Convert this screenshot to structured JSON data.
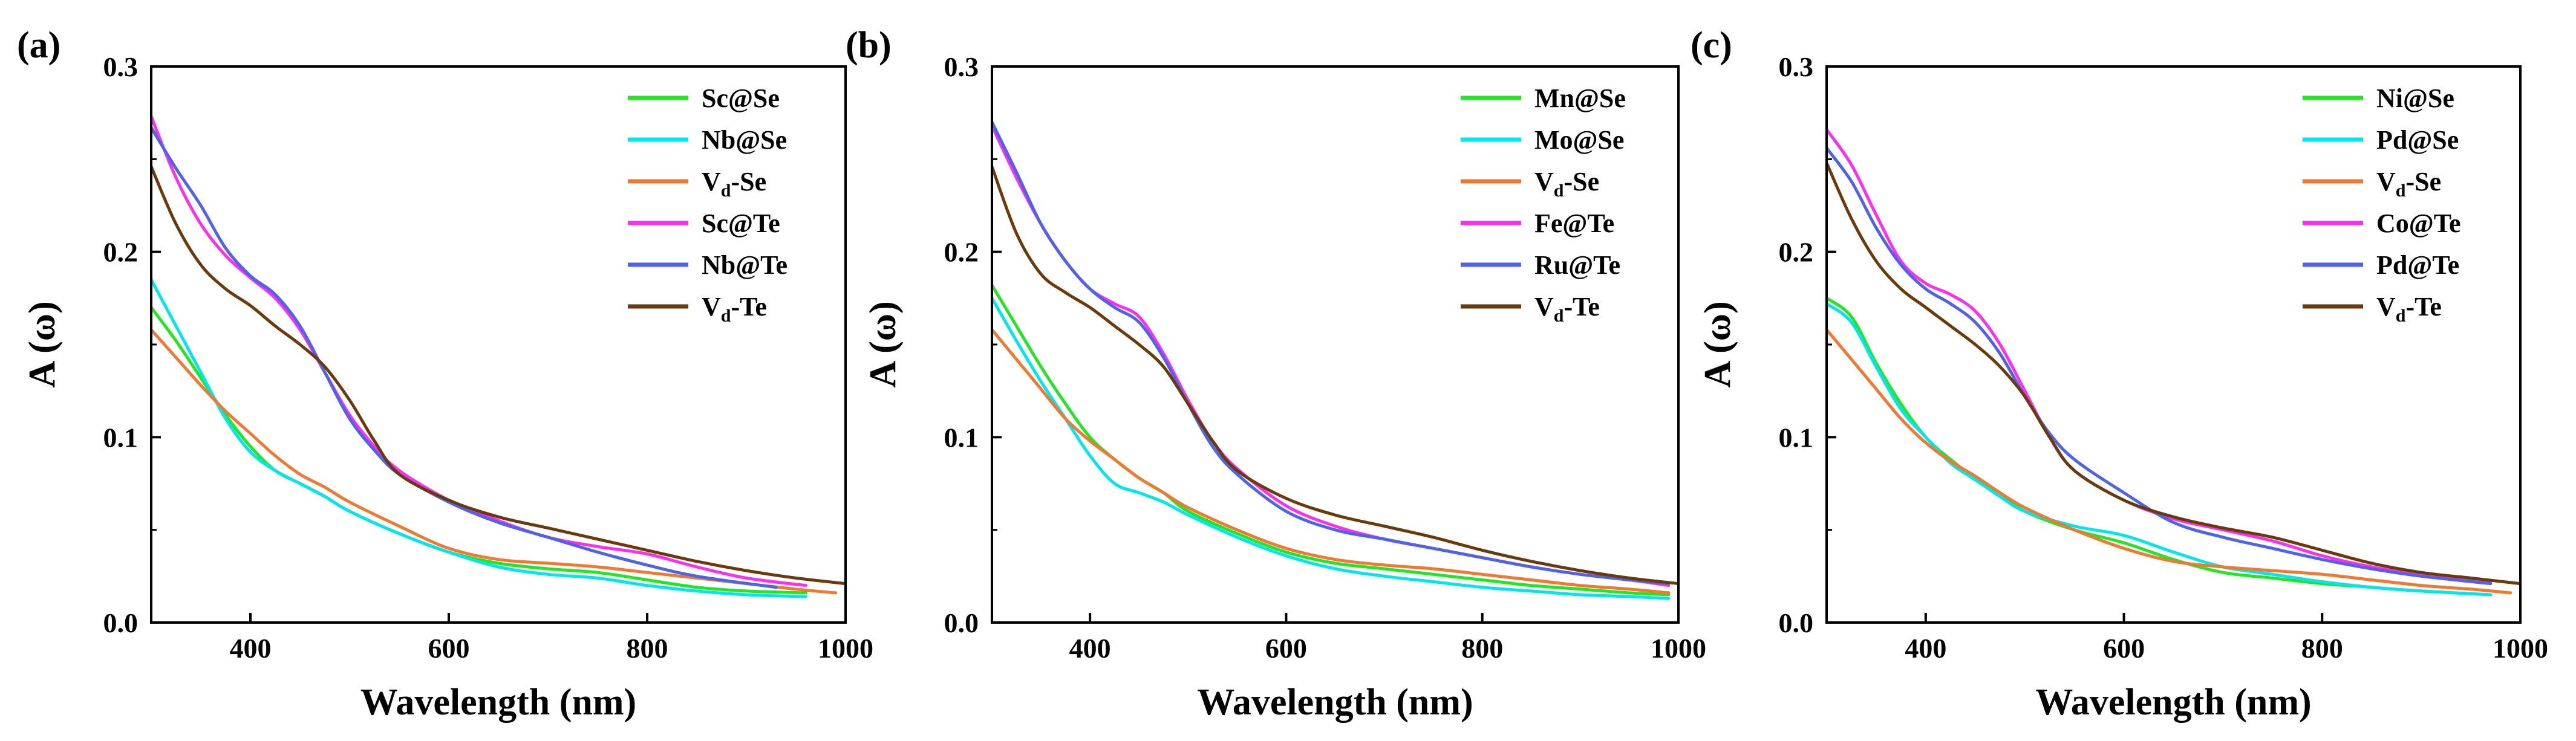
{
  "figure_caption": "",
  "chart_data": [
    {
      "panel": "(a)",
      "type": "line",
      "title": "",
      "xlabel": "Wavelength (nm)",
      "ylabel": "A (ω)",
      "xlim": [
        300,
        1000
      ],
      "ylim": [
        0,
        0.3
      ],
      "xticks": [
        400,
        600,
        800,
        1000
      ],
      "yticks": [
        0.0,
        0.1,
        0.2,
        0.3
      ],
      "xtick_labels": [
        "400",
        "600",
        "800",
        "1000"
      ],
      "ytick_labels": [
        "0.0",
        "0.1",
        "0.2",
        "0.3"
      ],
      "legend_position": "top-right",
      "series": [
        {
          "name": "Sc@Se",
          "label_main": "Sc@Se",
          "label_sub": "",
          "label_tail": "",
          "color": "#22e622",
          "x": [
            300,
            325,
            350,
            375,
            400,
            425,
            450,
            475,
            500,
            550,
            600,
            650,
            700,
            750,
            800,
            850,
            900,
            960
          ],
          "y": [
            0.17,
            0.152,
            0.132,
            0.112,
            0.095,
            0.082,
            0.075,
            0.068,
            0.06,
            0.048,
            0.038,
            0.032,
            0.029,
            0.027,
            0.023,
            0.019,
            0.017,
            0.016
          ]
        },
        {
          "name": "Nb@Se",
          "label_main": "Nb@Se",
          "label_sub": "",
          "label_tail": "",
          "color": "#00e5ee",
          "x": [
            300,
            325,
            350,
            375,
            400,
            425,
            450,
            475,
            500,
            550,
            600,
            650,
            700,
            750,
            800,
            850,
            900,
            960
          ],
          "y": [
            0.185,
            0.16,
            0.135,
            0.11,
            0.092,
            0.082,
            0.075,
            0.068,
            0.06,
            0.048,
            0.038,
            0.03,
            0.026,
            0.024,
            0.02,
            0.017,
            0.015,
            0.014
          ]
        },
        {
          "name": "Vd-Se",
          "label_main": "V",
          "label_sub": "d",
          "label_tail": "-Se",
          "color": "#f07830",
          "x": [
            300,
            325,
            350,
            375,
            400,
            425,
            450,
            475,
            500,
            550,
            600,
            650,
            700,
            750,
            800,
            850,
            900,
            950,
            990
          ],
          "y": [
            0.158,
            0.143,
            0.128,
            0.114,
            0.102,
            0.09,
            0.08,
            0.073,
            0.065,
            0.052,
            0.04,
            0.034,
            0.032,
            0.03,
            0.027,
            0.024,
            0.021,
            0.018,
            0.016
          ]
        },
        {
          "name": "Sc@Te",
          "label_main": "Sc@Te",
          "label_sub": "",
          "label_tail": "",
          "color": "#ff2df0",
          "x": [
            300,
            325,
            350,
            375,
            400,
            425,
            450,
            475,
            500,
            525,
            550,
            600,
            650,
            700,
            750,
            800,
            850,
            900,
            960
          ],
          "y": [
            0.273,
            0.24,
            0.215,
            0.198,
            0.186,
            0.175,
            0.158,
            0.135,
            0.112,
            0.095,
            0.082,
            0.066,
            0.055,
            0.046,
            0.041,
            0.037,
            0.03,
            0.024,
            0.02
          ]
        },
        {
          "name": "Nb@Te",
          "label_main": "Nb@Te",
          "label_sub": "",
          "label_tail": "",
          "color": "#4f63e8",
          "x": [
            300,
            325,
            350,
            375,
            400,
            425,
            450,
            475,
            500,
            525,
            550,
            600,
            650,
            700,
            750,
            800,
            850,
            930
          ],
          "y": [
            0.267,
            0.245,
            0.225,
            0.202,
            0.187,
            0.177,
            0.16,
            0.135,
            0.11,
            0.093,
            0.08,
            0.065,
            0.054,
            0.046,
            0.038,
            0.031,
            0.025,
            0.019
          ]
        },
        {
          "name": "Vd-Te",
          "label_main": "V",
          "label_sub": "d",
          "label_tail": "-Te",
          "color": "#6b3a0a",
          "x": [
            300,
            325,
            350,
            375,
            400,
            425,
            450,
            475,
            500,
            525,
            550,
            600,
            650,
            700,
            750,
            800,
            850,
            900,
            950,
            1000
          ],
          "y": [
            0.246,
            0.215,
            0.193,
            0.18,
            0.171,
            0.16,
            0.15,
            0.138,
            0.12,
            0.098,
            0.08,
            0.066,
            0.057,
            0.051,
            0.045,
            0.039,
            0.033,
            0.028,
            0.024,
            0.021
          ]
        }
      ]
    },
    {
      "panel": "(b)",
      "type": "line",
      "title": "",
      "xlabel": "Wavelength (nm)",
      "ylabel": "A (ω)",
      "xlim": [
        300,
        1000
      ],
      "ylim": [
        0,
        0.3
      ],
      "xticks": [
        400,
        600,
        800,
        1000
      ],
      "yticks": [
        0.0,
        0.1,
        0.2,
        0.3
      ],
      "xtick_labels": [
        "400",
        "600",
        "800",
        "1000"
      ],
      "ytick_labels": [
        "0.0",
        "0.1",
        "0.2",
        "0.3"
      ],
      "legend_position": "top-right",
      "series": [
        {
          "name": "Mn@Se",
          "label_main": "Mn@Se",
          "label_sub": "",
          "label_tail": "",
          "color": "#22e622",
          "x": [
            300,
            325,
            350,
            375,
            400,
            425,
            450,
            475,
            500,
            550,
            600,
            650,
            700,
            750,
            800,
            850,
            900,
            950,
            990
          ],
          "y": [
            0.182,
            0.16,
            0.138,
            0.118,
            0.1,
            0.088,
            0.078,
            0.07,
            0.06,
            0.048,
            0.038,
            0.032,
            0.029,
            0.026,
            0.023,
            0.02,
            0.018,
            0.016,
            0.015
          ]
        },
        {
          "name": "Mo@Se",
          "label_main": "Mo@Se",
          "label_sub": "",
          "label_tail": "",
          "color": "#00e5ee",
          "x": [
            300,
            325,
            350,
            375,
            400,
            425,
            450,
            475,
            500,
            550,
            600,
            650,
            700,
            750,
            800,
            850,
            900,
            950,
            990
          ],
          "y": [
            0.175,
            0.152,
            0.13,
            0.11,
            0.09,
            0.075,
            0.07,
            0.065,
            0.058,
            0.046,
            0.036,
            0.029,
            0.025,
            0.022,
            0.019,
            0.017,
            0.015,
            0.014,
            0.013
          ]
        },
        {
          "name": "Vd-Se",
          "label_main": "V",
          "label_sub": "d",
          "label_tail": "-Se",
          "color": "#f07830",
          "x": [
            300,
            325,
            350,
            375,
            400,
            425,
            450,
            475,
            500,
            550,
            600,
            650,
            700,
            750,
            800,
            850,
            900,
            950,
            990
          ],
          "y": [
            0.158,
            0.142,
            0.126,
            0.11,
            0.098,
            0.088,
            0.078,
            0.07,
            0.062,
            0.05,
            0.04,
            0.034,
            0.031,
            0.029,
            0.026,
            0.023,
            0.02,
            0.018,
            0.016
          ]
        },
        {
          "name": "Fe@Te",
          "label_main": "Fe@Te",
          "label_sub": "",
          "label_tail": "",
          "color": "#ff2df0",
          "x": [
            300,
            325,
            350,
            375,
            400,
            425,
            450,
            475,
            500,
            525,
            550,
            600,
            650,
            700,
            750,
            800,
            850,
            900,
            950,
            990
          ],
          "y": [
            0.268,
            0.24,
            0.215,
            0.195,
            0.18,
            0.172,
            0.165,
            0.145,
            0.12,
            0.098,
            0.083,
            0.063,
            0.052,
            0.045,
            0.04,
            0.035,
            0.03,
            0.026,
            0.023,
            0.02
          ]
        },
        {
          "name": "Ru@Te",
          "label_main": "Ru@Te",
          "label_sub": "",
          "label_tail": "",
          "color": "#4f63e8",
          "x": [
            300,
            325,
            350,
            375,
            400,
            425,
            450,
            475,
            500,
            525,
            550,
            600,
            650,
            700,
            750,
            800,
            850,
            900,
            950,
            990
          ],
          "y": [
            0.27,
            0.243,
            0.215,
            0.195,
            0.18,
            0.17,
            0.162,
            0.143,
            0.118,
            0.095,
            0.08,
            0.06,
            0.05,
            0.045,
            0.04,
            0.035,
            0.03,
            0.026,
            0.023,
            0.021
          ]
        },
        {
          "name": "Vd-Te",
          "label_main": "V",
          "label_sub": "d",
          "label_tail": "-Te",
          "color": "#6b3a0a",
          "x": [
            300,
            325,
            350,
            375,
            400,
            425,
            450,
            475,
            500,
            525,
            550,
            600,
            650,
            700,
            750,
            800,
            850,
            900,
            950,
            1000
          ],
          "y": [
            0.246,
            0.21,
            0.188,
            0.178,
            0.17,
            0.16,
            0.15,
            0.138,
            0.118,
            0.098,
            0.082,
            0.067,
            0.058,
            0.052,
            0.046,
            0.039,
            0.033,
            0.028,
            0.024,
            0.021
          ]
        }
      ]
    },
    {
      "panel": "(c)",
      "type": "line",
      "title": "",
      "xlabel": "Wavelength (nm)",
      "ylabel": "A (ω)",
      "xlim": [
        300,
        1000
      ],
      "ylim": [
        0,
        0.3
      ],
      "xticks": [
        400,
        600,
        800,
        1000
      ],
      "yticks": [
        0.0,
        0.1,
        0.2,
        0.3
      ],
      "xtick_labels": [
        "400",
        "600",
        "800",
        "1000"
      ],
      "ytick_labels": [
        "0.0",
        "0.1",
        "0.2",
        "0.3"
      ],
      "legend_position": "top-right",
      "series": [
        {
          "name": "Ni@Se",
          "label_main": "Ni@Se",
          "label_sub": "",
          "label_tail": "",
          "color": "#22e622",
          "x": [
            300,
            325,
            350,
            375,
            400,
            425,
            450,
            475,
            500,
            550,
            600,
            650,
            700,
            750,
            800,
            850,
            900,
            970
          ],
          "y": [
            0.175,
            0.165,
            0.14,
            0.118,
            0.1,
            0.088,
            0.078,
            0.07,
            0.06,
            0.05,
            0.043,
            0.034,
            0.027,
            0.024,
            0.021,
            0.019,
            0.017,
            0.015
          ]
        },
        {
          "name": "Pd@Se",
          "label_main": "Pd@Se",
          "label_sub": "",
          "label_tail": "",
          "color": "#00e5ee",
          "x": [
            300,
            325,
            350,
            375,
            400,
            425,
            450,
            475,
            500,
            550,
            600,
            650,
            700,
            750,
            800,
            850,
            900,
            970
          ],
          "y": [
            0.172,
            0.162,
            0.138,
            0.115,
            0.1,
            0.086,
            0.077,
            0.068,
            0.06,
            0.052,
            0.047,
            0.038,
            0.03,
            0.026,
            0.022,
            0.019,
            0.017,
            0.015
          ]
        },
        {
          "name": "Vd-Se",
          "label_main": "V",
          "label_sub": "d",
          "label_tail": "-Se",
          "color": "#f07830",
          "x": [
            300,
            325,
            350,
            375,
            400,
            425,
            450,
            475,
            500,
            550,
            600,
            650,
            700,
            750,
            800,
            850,
            900,
            950,
            990
          ],
          "y": [
            0.158,
            0.142,
            0.126,
            0.11,
            0.097,
            0.087,
            0.079,
            0.07,
            0.062,
            0.05,
            0.04,
            0.033,
            0.03,
            0.028,
            0.026,
            0.023,
            0.02,
            0.018,
            0.016
          ]
        },
        {
          "name": "Co@Te",
          "label_main": "Co@Te",
          "label_sub": "",
          "label_tail": "",
          "color": "#ff2df0",
          "x": [
            300,
            325,
            350,
            375,
            400,
            425,
            450,
            475,
            500,
            525,
            550,
            600,
            650,
            700,
            750,
            800,
            850,
            900,
            970
          ],
          "y": [
            0.266,
            0.247,
            0.22,
            0.195,
            0.183,
            0.177,
            0.168,
            0.15,
            0.125,
            0.1,
            0.082,
            0.066,
            0.056,
            0.05,
            0.044,
            0.036,
            0.03,
            0.026,
            0.022
          ]
        },
        {
          "name": "Pd@Te",
          "label_main": "Pd@Te",
          "label_sub": "",
          "label_tail": "",
          "color": "#4f63e8",
          "x": [
            300,
            325,
            350,
            375,
            400,
            425,
            450,
            475,
            500,
            525,
            550,
            600,
            650,
            700,
            750,
            800,
            850,
            900,
            970
          ],
          "y": [
            0.256,
            0.238,
            0.213,
            0.193,
            0.18,
            0.172,
            0.162,
            0.145,
            0.122,
            0.102,
            0.088,
            0.07,
            0.054,
            0.046,
            0.04,
            0.034,
            0.029,
            0.025,
            0.021
          ]
        },
        {
          "name": "Vd-Te",
          "label_main": "V",
          "label_sub": "d",
          "label_tail": "-Te",
          "color": "#6b3a0a",
          "x": [
            300,
            325,
            350,
            375,
            400,
            425,
            450,
            475,
            500,
            525,
            550,
            600,
            650,
            700,
            750,
            800,
            850,
            900,
            950,
            1000
          ],
          "y": [
            0.248,
            0.218,
            0.195,
            0.18,
            0.17,
            0.16,
            0.15,
            0.138,
            0.122,
            0.1,
            0.082,
            0.066,
            0.057,
            0.051,
            0.046,
            0.039,
            0.032,
            0.027,
            0.024,
            0.021
          ]
        }
      ]
    }
  ]
}
